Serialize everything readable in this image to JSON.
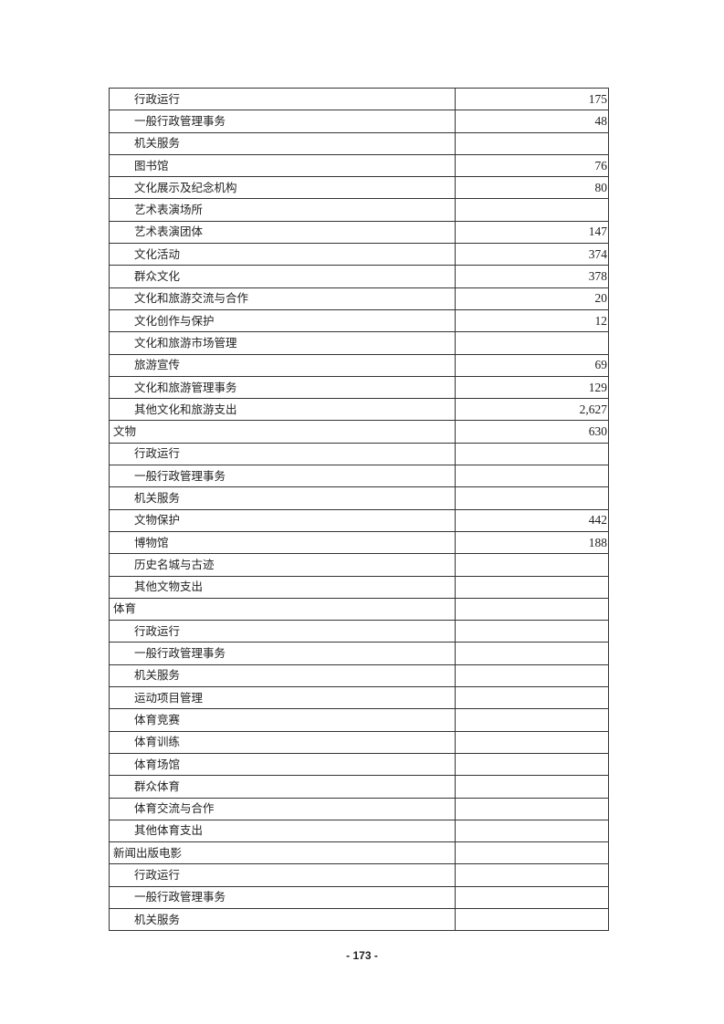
{
  "table": {
    "rows": [
      {
        "name": "行政运行",
        "value": "175",
        "level": 1
      },
      {
        "name": "一般行政管理事务",
        "value": "48",
        "level": 1
      },
      {
        "name": "机关服务",
        "value": "",
        "level": 1
      },
      {
        "name": "图书馆",
        "value": "76",
        "level": 1
      },
      {
        "name": "文化展示及纪念机构",
        "value": "80",
        "level": 1
      },
      {
        "name": "艺术表演场所",
        "value": "",
        "level": 1
      },
      {
        "name": "艺术表演团体",
        "value": "147",
        "level": 1
      },
      {
        "name": "文化活动",
        "value": "374",
        "level": 1
      },
      {
        "name": "群众文化",
        "value": "378",
        "level": 1
      },
      {
        "name": "文化和旅游交流与合作",
        "value": "20",
        "level": 1
      },
      {
        "name": "文化创作与保护",
        "value": "12",
        "level": 1
      },
      {
        "name": "文化和旅游市场管理",
        "value": "",
        "level": 1
      },
      {
        "name": "旅游宣传",
        "value": "69",
        "level": 1
      },
      {
        "name": "文化和旅游管理事务",
        "value": "129",
        "level": 1
      },
      {
        "name": "其他文化和旅游支出",
        "value": "2,627",
        "level": 1
      },
      {
        "name": "文物",
        "value": "630",
        "level": 0
      },
      {
        "name": "行政运行",
        "value": "",
        "level": 1
      },
      {
        "name": "一般行政管理事务",
        "value": "",
        "level": 1
      },
      {
        "name": "机关服务",
        "value": "",
        "level": 1
      },
      {
        "name": "文物保护",
        "value": "442",
        "level": 1
      },
      {
        "name": "博物馆",
        "value": "188",
        "level": 1
      },
      {
        "name": "历史名城与古迹",
        "value": "",
        "level": 1
      },
      {
        "name": "其他文物支出",
        "value": "",
        "level": 1
      },
      {
        "name": "体育",
        "value": "",
        "level": 0
      },
      {
        "name": "行政运行",
        "value": "",
        "level": 1
      },
      {
        "name": "一般行政管理事务",
        "value": "",
        "level": 1
      },
      {
        "name": "机关服务",
        "value": "",
        "level": 1
      },
      {
        "name": "运动项目管理",
        "value": "",
        "level": 1
      },
      {
        "name": "体育竞赛",
        "value": "",
        "level": 1
      },
      {
        "name": "体育训练",
        "value": "",
        "level": 1
      },
      {
        "name": "体育场馆",
        "value": "",
        "level": 1
      },
      {
        "name": "群众体育",
        "value": "",
        "level": 1
      },
      {
        "name": "体育交流与合作",
        "value": "",
        "level": 1
      },
      {
        "name": "其他体育支出",
        "value": "",
        "level": 1
      },
      {
        "name": "新闻出版电影",
        "value": "",
        "level": 0
      },
      {
        "name": "行政运行",
        "value": "",
        "level": 1
      },
      {
        "name": "一般行政管理事务",
        "value": "",
        "level": 1
      },
      {
        "name": "机关服务",
        "value": "",
        "level": 1
      }
    ]
  },
  "footer": {
    "page_number": "- 173 -"
  }
}
